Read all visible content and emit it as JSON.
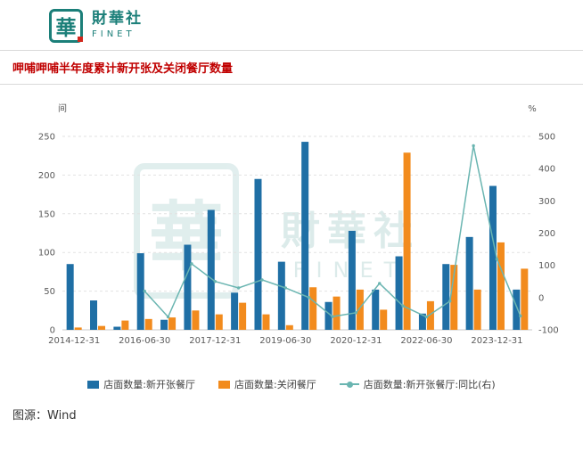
{
  "header": {
    "logo": {
      "seal_char": "華",
      "brand": "財華社",
      "brand_en": "FINET"
    },
    "title": "呷哺呷哺半年度累计新开张及关闭餐厅数量"
  },
  "watermark": {
    "seal_char": "華",
    "text": "財華社",
    "text_en": "FINET"
  },
  "footer": {
    "source": "图源：Wind"
  },
  "colors": {
    "title_red": "#c00000",
    "brand_teal": "#1b7f79",
    "bar_open_blue": "#1f6fa5",
    "bar_close_orange": "#f28b1d",
    "line_teal": "#6ab5b1"
  },
  "chart_data": {
    "type": "bar",
    "subtype": "combo-bar-line-dual-axis",
    "title": "呷哺呷哺半年度累计新开张及关闭餐厅数量",
    "categories": [
      "2014-12-31",
      "2015-06-30",
      "2015-12-31",
      "2016-06-30",
      "2016-12-31",
      "2017-06-30",
      "2017-12-31",
      "2018-06-30",
      "2018-12-31",
      "2019-06-30",
      "2019-12-31",
      "2020-06-30",
      "2020-12-31",
      "2021-06-30",
      "2021-12-31",
      "2022-06-30",
      "2022-12-31",
      "2023-06-30",
      "2023-12-31",
      "2024-06-30"
    ],
    "x_tick_step": 3,
    "x_tick_labels_shown": [
      "2014-12-31",
      "2016-06-30",
      "2017-12-31",
      "2019-06-30",
      "2020-12-31",
      "2022-06-30",
      "2023-12-31"
    ],
    "series": [
      {
        "name": "店面数量:新开张餐厅",
        "type": "bar",
        "axis": "left",
        "color": "#1f6fa5",
        "values": [
          85,
          38,
          4,
          99,
          13,
          110,
          155,
          48,
          195,
          88,
          243,
          36,
          128,
          52,
          95,
          21,
          85,
          120,
          186,
          52
        ]
      },
      {
        "name": "店面数量:关闭餐厅",
        "type": "bar",
        "axis": "left",
        "color": "#f28b1d",
        "values": [
          3,
          5,
          12,
          14,
          16,
          25,
          20,
          35,
          20,
          6,
          55,
          43,
          52,
          26,
          229,
          37,
          84,
          52,
          113,
          79
        ]
      },
      {
        "name": "店面数量:新开张餐厅:同比(右)",
        "type": "line",
        "axis": "right",
        "color": "#6ab5b1",
        "values": [
          null,
          null,
          null,
          20,
          -60,
          105,
          50,
          30,
          55,
          30,
          0,
          -59,
          -47,
          44,
          -26,
          -60,
          -11,
          471,
          119,
          -57
        ]
      }
    ],
    "left_axis": {
      "unit_label": "间",
      "min": 0,
      "max": 250,
      "ticks": [
        0,
        50,
        100,
        150,
        200,
        250
      ]
    },
    "right_axis": {
      "unit_label": "%",
      "min": -100,
      "max": 500,
      "ticks": [
        -100,
        0,
        100,
        200,
        300,
        400,
        500
      ]
    },
    "grid": "horizontal-dashed",
    "legend_position": "bottom"
  }
}
